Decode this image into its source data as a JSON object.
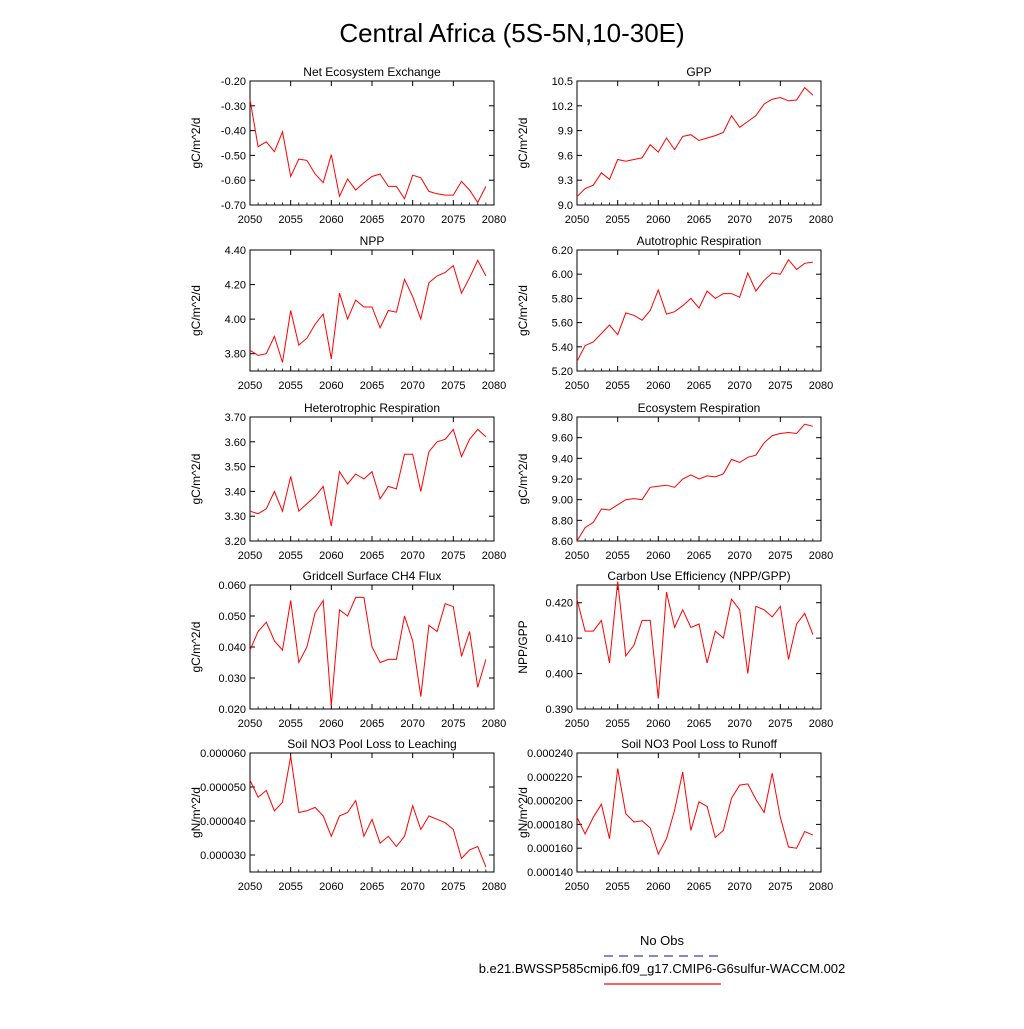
{
  "page": {
    "title": "Central Africa (5S-5N,10-30E)"
  },
  "legend": {
    "obs_label": "No Obs",
    "case_label": "b.e21.BWSSP585cmip6.f09_g17.CMIP6-G6sulfur-WACCM.002",
    "obs_color": "#3c3cc8",
    "case_color": "#ff0000"
  },
  "chart_data": [
    {
      "type": "line",
      "title": "Net Ecosystem Exchange",
      "ylabel": "gC/m^2/d",
      "xlim": [
        2050,
        2080
      ],
      "ylim": [
        -0.7,
        -0.2
      ],
      "xticks": [
        2050,
        2055,
        2060,
        2065,
        2070,
        2075,
        2080
      ],
      "yticks": [
        -0.7,
        -0.6,
        -0.5,
        -0.4,
        -0.3,
        -0.2
      ],
      "ytick_labels": [
        "-0.70",
        "-0.60",
        "-0.50",
        "-0.40",
        "-0.30",
        "-0.20"
      ],
      "series": [
        {
          "color": "#ff0000",
          "x_start": 2050,
          "values": [
            -0.275,
            -0.465,
            -0.445,
            -0.485,
            -0.405,
            -0.585,
            -0.515,
            -0.52,
            -0.575,
            -0.61,
            -0.497,
            -0.665,
            -0.595,
            -0.64,
            -0.61,
            -0.585,
            -0.575,
            -0.625,
            -0.625,
            -0.675,
            -0.58,
            -0.59,
            -0.645,
            -0.655,
            -0.66,
            -0.66,
            -0.605,
            -0.64,
            -0.69,
            -0.625
          ]
        }
      ]
    },
    {
      "type": "line",
      "title": "GPP",
      "ylabel": "gC/m^2/d",
      "xlim": [
        2050,
        2080
      ],
      "ylim": [
        9.0,
        10.5
      ],
      "xticks": [
        2050,
        2055,
        2060,
        2065,
        2070,
        2075,
        2080
      ],
      "yticks": [
        9.0,
        9.3,
        9.6,
        9.9,
        10.2,
        10.5
      ],
      "ytick_labels": [
        "9.0",
        "9.3",
        "9.6",
        "9.9",
        "10.2",
        "10.5"
      ],
      "series": [
        {
          "color": "#ff0000",
          "x_start": 2050,
          "values": [
            9.1,
            9.2,
            9.24,
            9.39,
            9.31,
            9.55,
            9.53,
            9.55,
            9.57,
            9.73,
            9.64,
            9.81,
            9.67,
            9.83,
            9.85,
            9.78,
            9.81,
            9.84,
            9.88,
            10.08,
            9.94,
            10.01,
            10.08,
            10.22,
            10.28,
            10.3,
            10.26,
            10.27,
            10.42,
            10.33
          ]
        }
      ]
    },
    {
      "type": "line",
      "title": "NPP",
      "ylabel": "gC/m^2/d",
      "xlim": [
        2050,
        2080
      ],
      "ylim": [
        3.7,
        4.4
      ],
      "xticks": [
        2050,
        2055,
        2060,
        2065,
        2070,
        2075,
        2080
      ],
      "yticks": [
        3.8,
        4.0,
        4.2,
        4.4
      ],
      "ytick_labels": [
        "3.80",
        "4.00",
        "4.20",
        "4.40"
      ],
      "series": [
        {
          "color": "#ff0000",
          "x_start": 2050,
          "values": [
            3.82,
            3.79,
            3.8,
            3.9,
            3.75,
            4.05,
            3.85,
            3.89,
            3.97,
            4.03,
            3.77,
            4.15,
            4.0,
            4.11,
            4.07,
            4.07,
            3.95,
            4.05,
            4.04,
            4.23,
            4.13,
            4.0,
            4.21,
            4.25,
            4.27,
            4.31,
            4.15,
            4.24,
            4.34,
            4.25
          ]
        }
      ]
    },
    {
      "type": "line",
      "title": "Autotrophic Respiration",
      "ylabel": "gC/m^2/d",
      "xlim": [
        2050,
        2080
      ],
      "ylim": [
        5.2,
        6.2
      ],
      "xticks": [
        2050,
        2055,
        2060,
        2065,
        2070,
        2075,
        2080
      ],
      "yticks": [
        5.2,
        5.4,
        5.6,
        5.8,
        6.0,
        6.2
      ],
      "ytick_labels": [
        "5.20",
        "5.40",
        "5.60",
        "5.80",
        "6.00",
        "6.20"
      ],
      "series": [
        {
          "color": "#ff0000",
          "x_start": 2050,
          "values": [
            5.28,
            5.41,
            5.44,
            5.51,
            5.58,
            5.5,
            5.68,
            5.66,
            5.62,
            5.7,
            5.87,
            5.67,
            5.69,
            5.74,
            5.8,
            5.72,
            5.86,
            5.8,
            5.84,
            5.84,
            5.81,
            6.01,
            5.86,
            5.95,
            6.01,
            6.0,
            6.12,
            6.04,
            6.09,
            6.1
          ]
        }
      ]
    },
    {
      "type": "line",
      "title": "Heterotrophic Respiration",
      "ylabel": "gC/m^2/d",
      "xlim": [
        2050,
        2080
      ],
      "ylim": [
        3.2,
        3.7
      ],
      "xticks": [
        2050,
        2055,
        2060,
        2065,
        2070,
        2075,
        2080
      ],
      "yticks": [
        3.2,
        3.3,
        3.4,
        3.5,
        3.6,
        3.7
      ],
      "ytick_labels": [
        "3.20",
        "3.30",
        "3.40",
        "3.50",
        "3.60",
        "3.70"
      ],
      "series": [
        {
          "color": "#ff0000",
          "x_start": 2050,
          "values": [
            3.32,
            3.31,
            3.33,
            3.4,
            3.32,
            3.46,
            3.32,
            3.35,
            3.38,
            3.42,
            3.26,
            3.48,
            3.43,
            3.47,
            3.45,
            3.48,
            3.37,
            3.42,
            3.41,
            3.55,
            3.55,
            3.4,
            3.56,
            3.6,
            3.61,
            3.65,
            3.54,
            3.61,
            3.65,
            3.62
          ]
        }
      ]
    },
    {
      "type": "line",
      "title": "Ecosystem Respiration",
      "ylabel": "gC/m^2/d",
      "xlim": [
        2050,
        2080
      ],
      "ylim": [
        8.6,
        9.8
      ],
      "xticks": [
        2050,
        2055,
        2060,
        2065,
        2070,
        2075,
        2080
      ],
      "yticks": [
        8.6,
        8.8,
        9.0,
        9.2,
        9.4,
        9.6,
        9.8
      ],
      "ytick_labels": [
        "8.60",
        "8.80",
        "9.00",
        "9.20",
        "9.40",
        "9.60",
        "9.80"
      ],
      "series": [
        {
          "color": "#ff0000",
          "x_start": 2050,
          "values": [
            8.6,
            8.73,
            8.78,
            8.91,
            8.9,
            8.95,
            9.0,
            9.01,
            9.0,
            9.12,
            9.13,
            9.14,
            9.12,
            9.2,
            9.24,
            9.2,
            9.23,
            9.22,
            9.25,
            9.39,
            9.36,
            9.41,
            9.43,
            9.55,
            9.62,
            9.64,
            9.65,
            9.64,
            9.73,
            9.71
          ]
        }
      ]
    },
    {
      "type": "line",
      "title": "Gridcell Surface CH4 Flux",
      "ylabel": "gC/m^2/d",
      "xlim": [
        2050,
        2080
      ],
      "ylim": [
        0.02,
        0.06
      ],
      "xticks": [
        2050,
        2055,
        2060,
        2065,
        2070,
        2075,
        2080
      ],
      "yticks": [
        0.02,
        0.03,
        0.04,
        0.05,
        0.06
      ],
      "ytick_labels": [
        "0.020",
        "0.030",
        "0.040",
        "0.050",
        "0.060"
      ],
      "series": [
        {
          "color": "#ff0000",
          "x_start": 2050,
          "values": [
            0.039,
            0.045,
            0.048,
            0.042,
            0.039,
            0.055,
            0.035,
            0.04,
            0.051,
            0.055,
            0.021,
            0.052,
            0.05,
            0.056,
            0.056,
            0.04,
            0.035,
            0.036,
            0.036,
            0.05,
            0.042,
            0.024,
            0.047,
            0.045,
            0.054,
            0.053,
            0.037,
            0.045,
            0.027,
            0.036
          ]
        }
      ]
    },
    {
      "type": "line",
      "title": "Carbon Use Efficiency (NPP/GPP)",
      "ylabel": "NPP/GPP",
      "xlim": [
        2050,
        2080
      ],
      "ylim": [
        0.39,
        0.425
      ],
      "xticks": [
        2050,
        2055,
        2060,
        2065,
        2070,
        2075,
        2080
      ],
      "yticks": [
        0.39,
        0.4,
        0.41,
        0.42
      ],
      "ytick_labels": [
        "0.390",
        "0.400",
        "0.410",
        "0.420"
      ],
      "series": [
        {
          "color": "#ff0000",
          "x_start": 2050,
          "values": [
            0.421,
            0.412,
            0.412,
            0.415,
            0.403,
            0.426,
            0.405,
            0.408,
            0.415,
            0.415,
            0.393,
            0.423,
            0.413,
            0.418,
            0.413,
            0.414,
            0.403,
            0.412,
            0.41,
            0.421,
            0.418,
            0.4,
            0.419,
            0.418,
            0.416,
            0.419,
            0.404,
            0.414,
            0.417,
            0.411
          ]
        }
      ]
    },
    {
      "type": "line",
      "title": "Soil NO3 Pool Loss to Leaching",
      "ylabel": "gN/m^2/d",
      "xlim": [
        2050,
        2080
      ],
      "ylim": [
        2.5e-05,
        6e-05
      ],
      "xticks": [
        2050,
        2055,
        2060,
        2065,
        2070,
        2075,
        2080
      ],
      "yticks": [
        3e-05,
        4e-05,
        5e-05,
        6e-05
      ],
      "ytick_labels": [
        "0.000030",
        "0.000040",
        "0.000050",
        "0.000060"
      ],
      "series": [
        {
          "color": "#ff0000",
          "x_start": 2050,
          "values": [
            5.2e-05,
            4.7e-05,
            4.9e-05,
            4.3e-05,
            4.55e-05,
            5.9e-05,
            4.25e-05,
            4.3e-05,
            4.4e-05,
            4.15e-05,
            3.55e-05,
            4.15e-05,
            4.25e-05,
            4.6e-05,
            3.55e-05,
            4.05e-05,
            3.35e-05,
            3.55e-05,
            3.25e-05,
            3.55e-05,
            4.45e-05,
            3.75e-05,
            4.15e-05,
            4.05e-05,
            3.95e-05,
            3.75e-05,
            2.9e-05,
            3.15e-05,
            3.25e-05,
            2.65e-05
          ]
        }
      ]
    },
    {
      "type": "line",
      "title": "Soil NO3 Pool Loss to Runoff",
      "ylabel": "gN/m^2/d",
      "xlim": [
        2050,
        2080
      ],
      "ylim": [
        0.00014,
        0.00024
      ],
      "xticks": [
        2050,
        2055,
        2060,
        2065,
        2070,
        2075,
        2080
      ],
      "yticks": [
        0.00014,
        0.00016,
        0.00018,
        0.0002,
        0.00022,
        0.00024
      ],
      "ytick_labels": [
        "0.000140",
        "0.000160",
        "0.000180",
        "0.000200",
        "0.000220",
        "0.000240"
      ],
      "series": [
        {
          "color": "#ff0000",
          "x_start": 2050,
          "values": [
            0.000186,
            0.000172,
            0.000186,
            0.000197,
            0.000168,
            0.000227,
            0.000189,
            0.000182,
            0.000183,
            0.000177,
            0.000155,
            0.000168,
            0.000192,
            0.000224,
            0.000175,
            0.000199,
            0.000195,
            0.000169,
            0.000175,
            0.000202,
            0.000213,
            0.000214,
            0.000201,
            0.00019,
            0.000223,
            0.000186,
            0.000161,
            0.00016,
            0.000174,
            0.000171
          ]
        }
      ]
    }
  ]
}
